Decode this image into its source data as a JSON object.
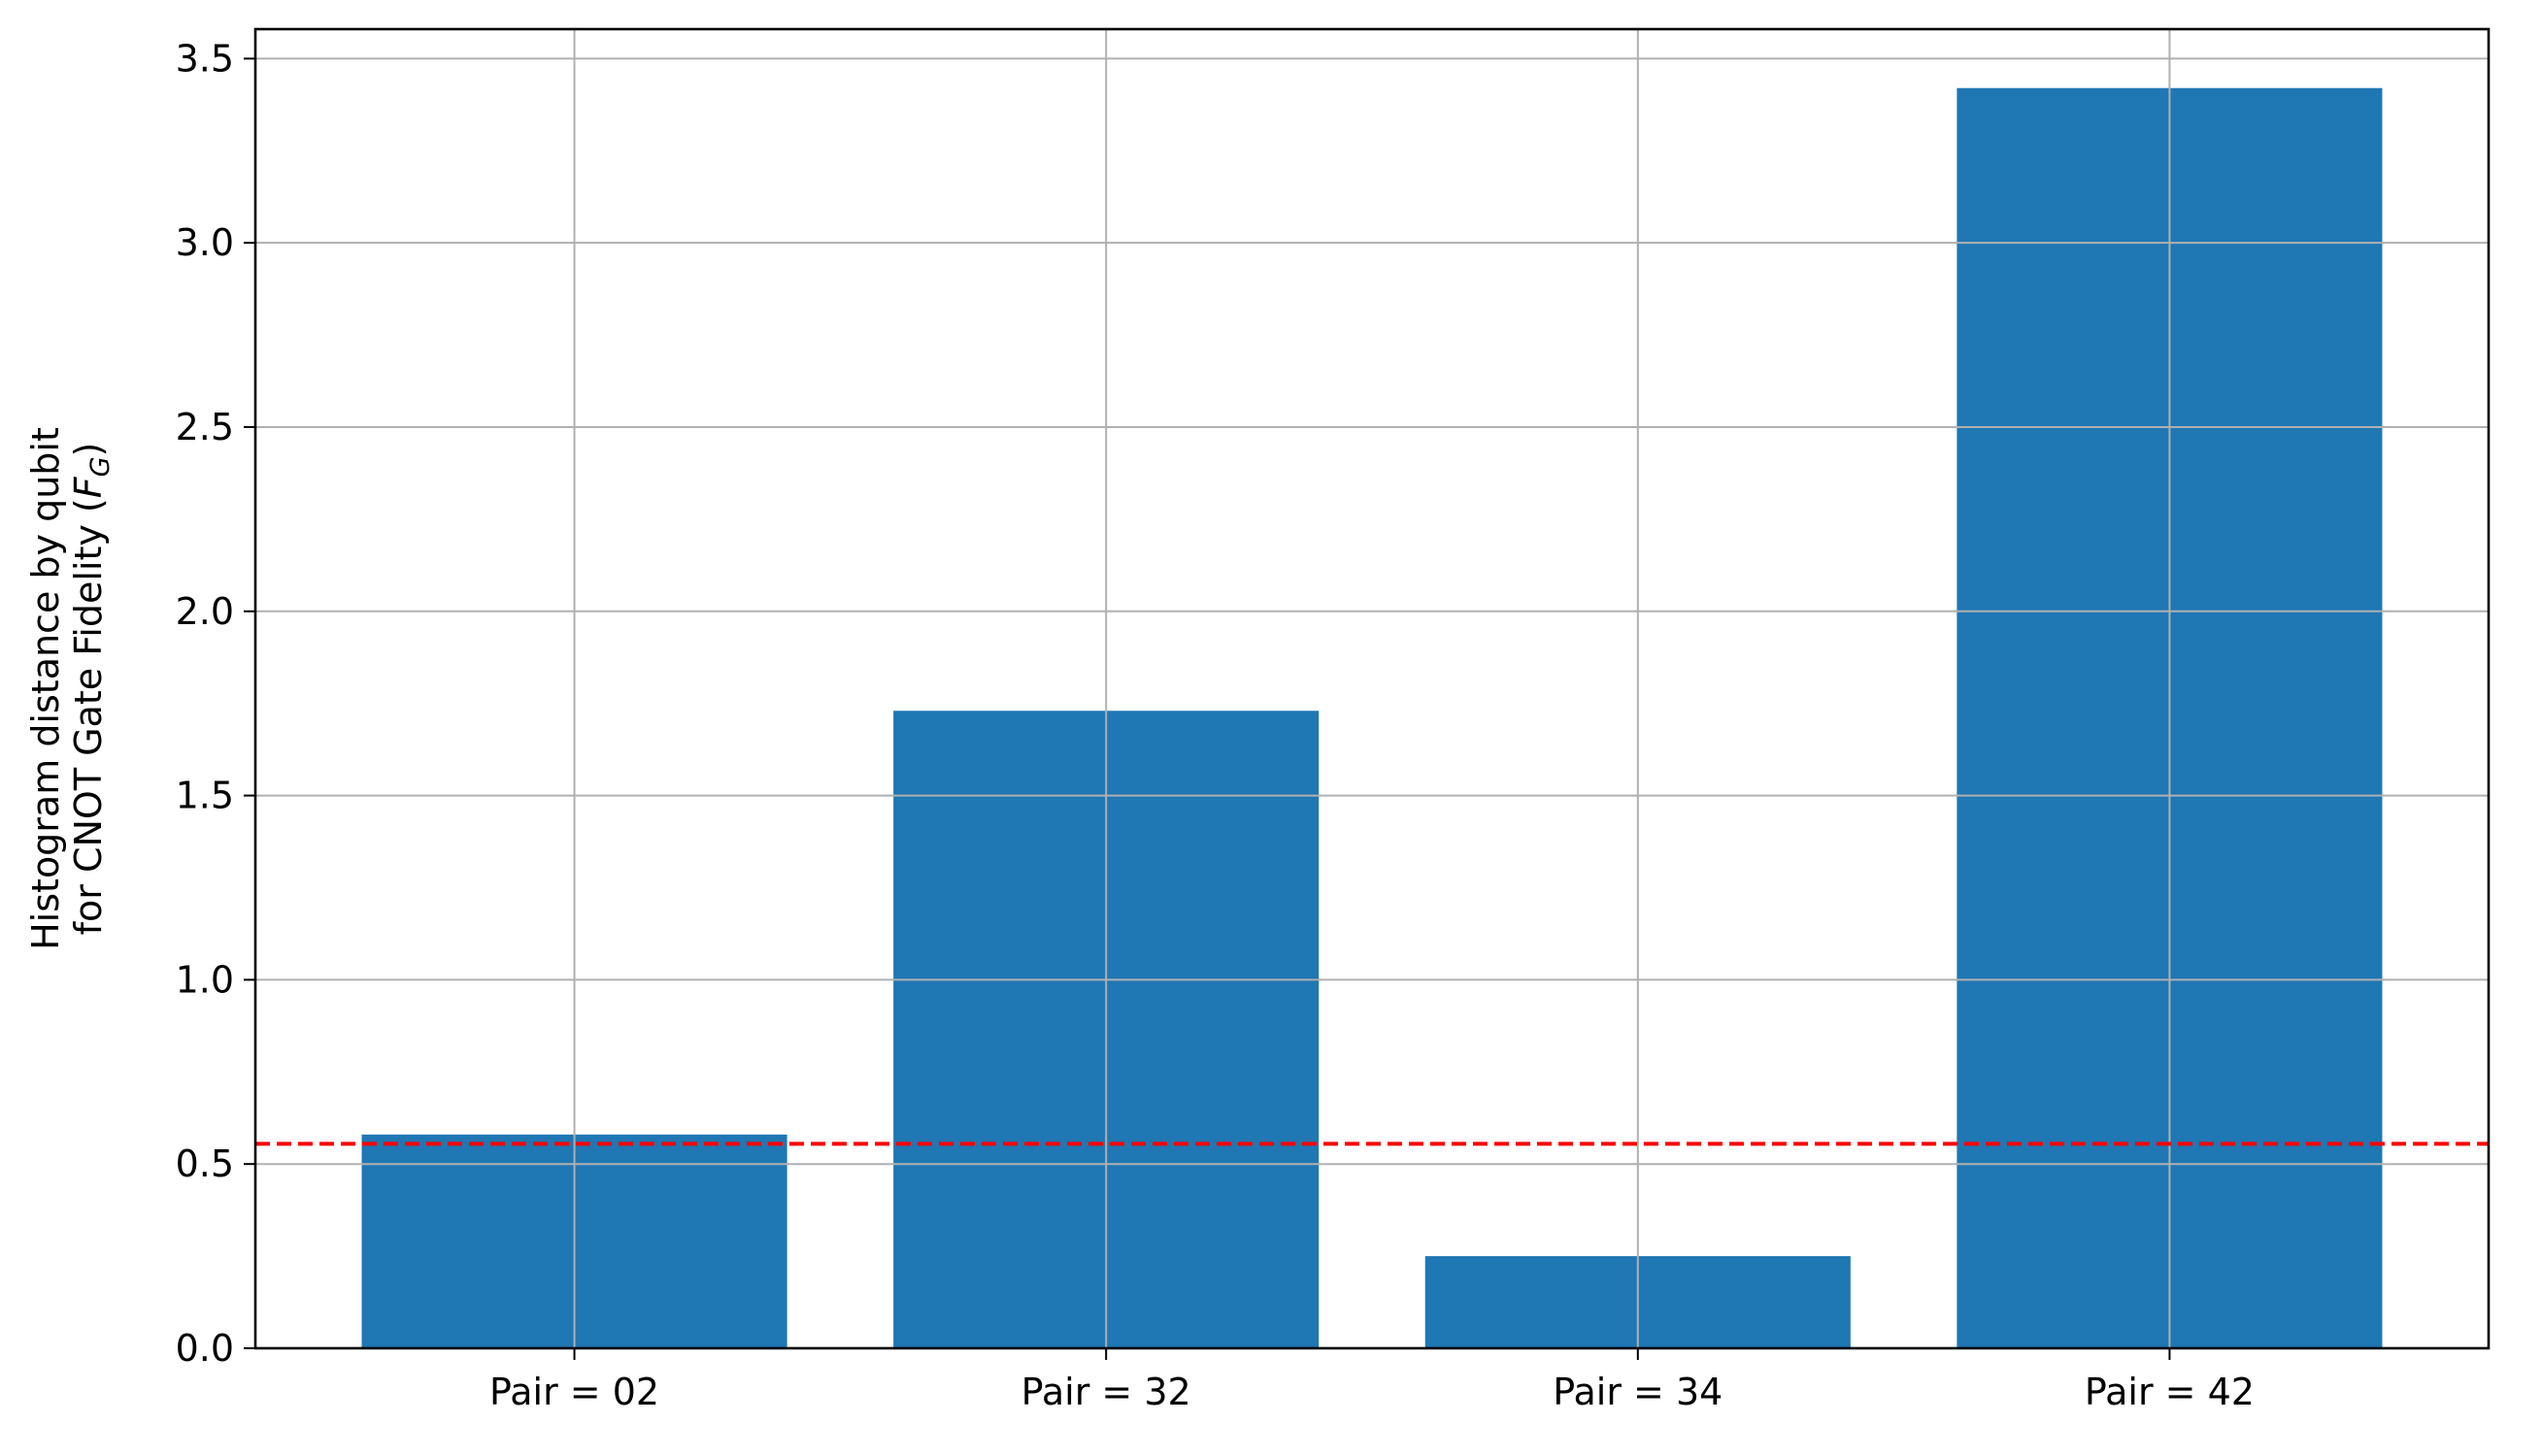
{
  "chart_data": {
    "type": "bar",
    "title": "",
    "xlabel": "",
    "ylabel_lines": [
      "Histogram distance by qubit",
      "for CNOT Gate Fidelity ("
    ],
    "ylabel_math_base": "F",
    "ylabel_math_sub": "G",
    "ylabel_close": ")",
    "categories": [
      "Pair = 02",
      "Pair = 32",
      "Pair = 34",
      "Pair = 42"
    ],
    "values": [
      0.58,
      1.73,
      0.25,
      3.42
    ],
    "ylim": [
      0,
      3.58
    ],
    "yticks": [
      0.0,
      0.5,
      1.0,
      1.5,
      2.0,
      2.5,
      3.0,
      3.5
    ],
    "ytick_labels": [
      "0.0",
      "0.5",
      "1.0",
      "1.5",
      "2.0",
      "2.5",
      "3.0",
      "3.5"
    ],
    "reference_line": {
      "value": 0.555,
      "color": "#ff0000",
      "style": "dashed"
    },
    "grid": true,
    "bar_color": "#1f77b4",
    "grid_color": "#b0b0b0"
  }
}
